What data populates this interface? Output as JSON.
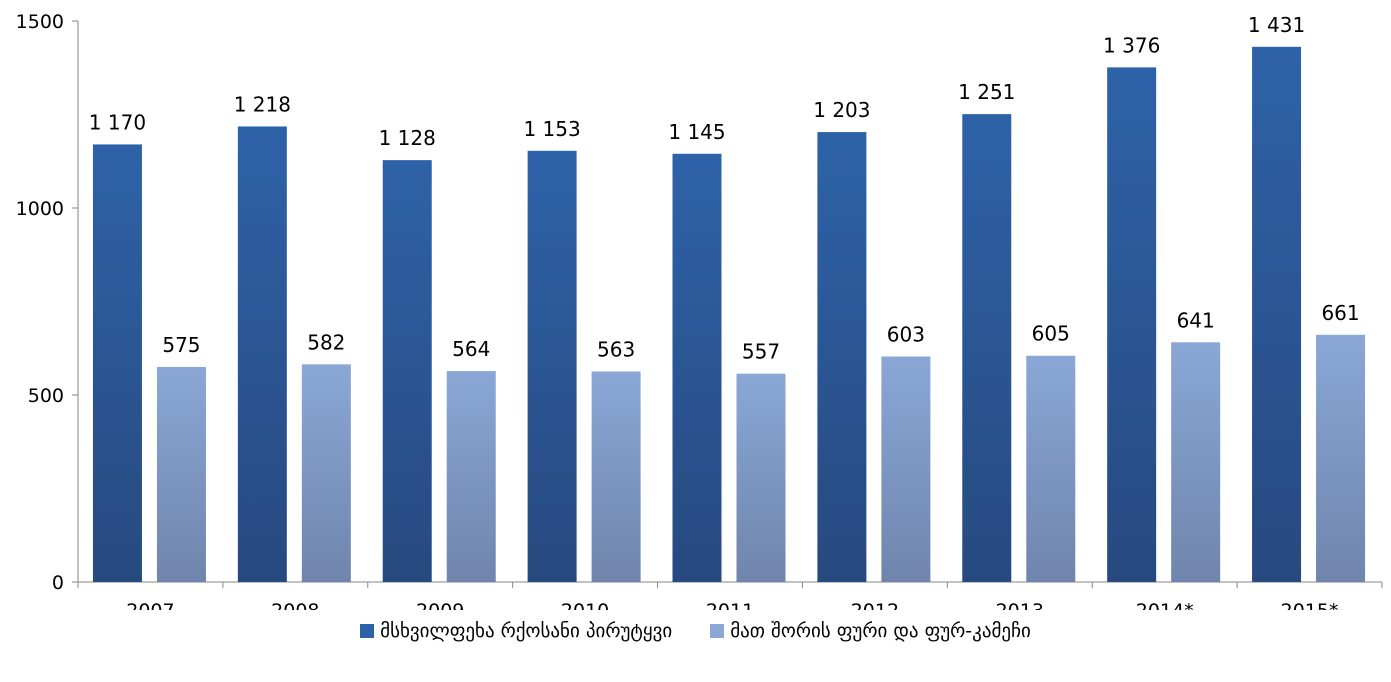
{
  "chart_data": {
    "type": "bar",
    "categories": [
      "2007",
      "2008",
      "2009",
      "2010",
      "2011",
      "2012",
      "2013",
      "2014*",
      "2015*"
    ],
    "series": [
      {
        "name": "მსხვილფეხა რქოსანი პირუტყვი",
        "values": [
          1170,
          1218,
          1128,
          1153,
          1145,
          1203,
          1251,
          1376,
          1431
        ],
        "labels": [
          "1 170",
          "1 218",
          "1 128",
          "1 153",
          "1 145",
          "1 203",
          "1 251",
          "1 376",
          "1 431"
        ],
        "color": "#2e62a8",
        "color_dark": "#27497f"
      },
      {
        "name": "მათ შორის ფური და ფურ-კამეჩი",
        "values": [
          575,
          582,
          564,
          563,
          557,
          603,
          605,
          641,
          661
        ],
        "labels": [
          "575",
          "582",
          "564",
          "563",
          "557",
          "603",
          "605",
          "641",
          "661"
        ],
        "color": "#8aa7d6",
        "color_dark": "#6f85ad"
      }
    ],
    "ylim": [
      0,
      1500
    ],
    "yticks": [
      0,
      500,
      1000,
      1500
    ],
    "ytick_labels": [
      "0",
      "500",
      "1000",
      "1500"
    ],
    "grid": false,
    "legend_position": "bottom"
  }
}
